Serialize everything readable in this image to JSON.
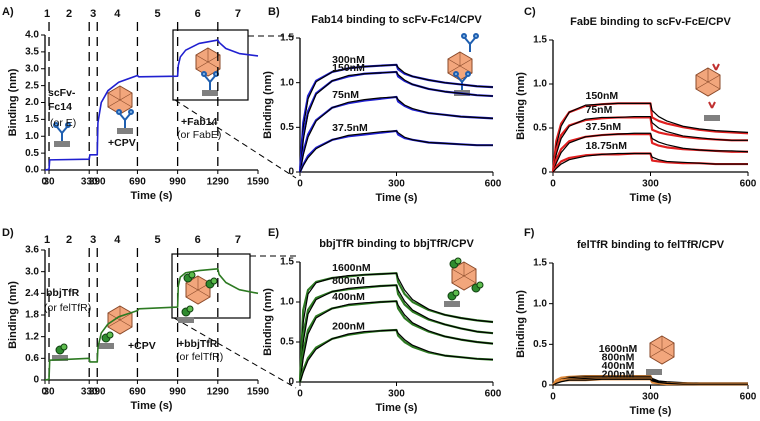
{
  "chart_data": [
    {
      "type": "line",
      "panel": "A)",
      "xlabel": "Time (s)",
      "ylabel": "Binding (nm)",
      "x": [
        0,
        30,
        35,
        330,
        335,
        390,
        395,
        420,
        470,
        550,
        690,
        700,
        990,
        995,
        1010,
        1050,
        1150,
        1290,
        1300,
        1350,
        1450,
        1590
      ],
      "xlim": [
        0,
        1590
      ],
      "xticks": [
        0,
        30,
        330,
        390,
        690,
        990,
        1290,
        1590
      ],
      "ylim": [
        0,
        4
      ],
      "yticks": [
        {
          "value": 0,
          "label": "0.0"
        },
        0.5,
        {
          "value": 1,
          "label": "1.0"
        },
        1.5,
        {
          "value": 2,
          "label": "2.0"
        },
        2.5,
        {
          "value": 3,
          "label": "3.0"
        },
        3.5,
        {
          "value": 4,
          "label": "4.0"
        }
      ],
      "series": [
        {
          "color": "#2020d0",
          "values": [
            0,
            0.02,
            0.3,
            0.32,
            0.45,
            0.45,
            1.4,
            2.0,
            2.35,
            2.6,
            2.8,
            2.76,
            2.78,
            3.1,
            3.35,
            3.55,
            3.75,
            3.85,
            3.78,
            3.6,
            3.45,
            3.38
          ]
        }
      ],
      "steps": {
        "labels": [
          "1",
          "2",
          "3",
          "4",
          "5",
          "6",
          "7"
        ],
        "boundaries": [
          30,
          330,
          390,
          690,
          990,
          1290
        ]
      },
      "annotations": [
        "scFv-",
        "Fc14",
        "(or E)",
        "+CPV",
        "+Fab14",
        "(or FabE)"
      ]
    },
    {
      "type": "line",
      "panel": "B)",
      "title": "Fab14 binding to scFv-Fc14/CPV",
      "xlabel": "Time (s)",
      "ylabel": "Binding (nm)",
      "x": [
        0,
        10,
        25,
        50,
        100,
        150,
        200,
        250,
        300,
        305,
        325,
        350,
        400,
        450,
        500,
        550,
        600
      ],
      "xlim": [
        0,
        600
      ],
      "xticks": [
        0,
        300,
        600
      ],
      "ylim": [
        0,
        1.5
      ],
      "yticks": [
        0,
        0.5,
        {
          "value": 1,
          "label": "1.0"
        },
        1.5
      ],
      "fit_color": "#000000",
      "series": [
        {
          "name": "300nM",
          "color": "#2020d0",
          "values": [
            0,
            0.55,
            0.85,
            1.02,
            1.12,
            1.16,
            1.18,
            1.19,
            1.2,
            1.15,
            1.1,
            1.07,
            1.03,
            1.0,
            0.98,
            0.96,
            0.95
          ],
          "fit": [
            0,
            0.5,
            0.82,
            1.01,
            1.12,
            1.16,
            1.18,
            1.19,
            1.2,
            1.17,
            1.11,
            1.07,
            1.03,
            1.0,
            0.98,
            0.96,
            0.95
          ]
        },
        {
          "name": "150nM",
          "color": "#2020d0",
          "values": [
            0,
            0.4,
            0.68,
            0.88,
            1.02,
            1.07,
            1.1,
            1.11,
            1.12,
            1.07,
            1.02,
            0.98,
            0.93,
            0.9,
            0.88,
            0.86,
            0.85
          ],
          "fit": [
            0,
            0.36,
            0.65,
            0.87,
            1.02,
            1.08,
            1.1,
            1.11,
            1.12,
            1.09,
            1.03,
            0.98,
            0.93,
            0.9,
            0.88,
            0.86,
            0.85
          ]
        },
        {
          "name": "75nM",
          "color": "#2020d0",
          "values": [
            0,
            0.22,
            0.42,
            0.58,
            0.72,
            0.77,
            0.8,
            0.82,
            0.84,
            0.79,
            0.74,
            0.7,
            0.66,
            0.64,
            0.62,
            0.61,
            0.6
          ],
          "fit": [
            0,
            0.19,
            0.39,
            0.57,
            0.72,
            0.78,
            0.81,
            0.83,
            0.84,
            0.81,
            0.75,
            0.71,
            0.66,
            0.64,
            0.62,
            0.61,
            0.6
          ]
        },
        {
          "name": "37.5nM",
          "color": "#2020d0",
          "values": [
            0,
            0.08,
            0.18,
            0.27,
            0.36,
            0.4,
            0.42,
            0.44,
            0.46,
            0.42,
            0.38,
            0.36,
            0.33,
            0.32,
            0.31,
            0.3,
            0.3
          ],
          "fit": [
            0,
            0.07,
            0.16,
            0.26,
            0.36,
            0.41,
            0.43,
            0.45,
            0.46,
            0.44,
            0.39,
            0.36,
            0.33,
            0.32,
            0.31,
            0.3,
            0.3
          ]
        }
      ]
    },
    {
      "type": "line",
      "panel": "C)",
      "title": "FabE binding to scFv-FcE/CPV",
      "xlabel": "Time (s)",
      "ylabel": "Binding (nm)",
      "x": [
        0,
        10,
        25,
        50,
        100,
        150,
        200,
        250,
        300,
        305,
        325,
        350,
        400,
        450,
        500,
        550,
        600
      ],
      "xlim": [
        0,
        600
      ],
      "xticks": [
        0,
        300,
        600
      ],
      "ylim": [
        0,
        1.5
      ],
      "yticks": [
        0,
        0.5,
        {
          "value": 1,
          "label": "1.0"
        },
        1.5
      ],
      "fit_color": "#000000",
      "series": [
        {
          "name": "150nM",
          "color": "#e02020",
          "values": [
            0,
            0.35,
            0.55,
            0.68,
            0.75,
            0.77,
            0.78,
            0.78,
            0.78,
            0.62,
            0.58,
            0.55,
            0.51,
            0.48,
            0.46,
            0.45,
            0.44
          ],
          "fit": [
            0,
            0.3,
            0.52,
            0.68,
            0.76,
            0.77,
            0.78,
            0.78,
            0.78,
            0.7,
            0.63,
            0.58,
            0.52,
            0.49,
            0.47,
            0.46,
            0.45
          ]
        },
        {
          "name": "75nM",
          "color": "#e02020",
          "values": [
            0,
            0.25,
            0.42,
            0.53,
            0.59,
            0.61,
            0.62,
            0.62,
            0.62,
            0.48,
            0.45,
            0.43,
            0.4,
            0.38,
            0.37,
            0.36,
            0.36
          ],
          "fit": [
            0,
            0.2,
            0.38,
            0.52,
            0.6,
            0.62,
            0.62,
            0.63,
            0.63,
            0.56,
            0.5,
            0.46,
            0.41,
            0.39,
            0.37,
            0.36,
            0.36
          ]
        },
        {
          "name": "37.5nM",
          "color": "#e02020",
          "values": [
            0,
            0.14,
            0.26,
            0.35,
            0.4,
            0.42,
            0.43,
            0.43,
            0.43,
            0.33,
            0.3,
            0.28,
            0.26,
            0.25,
            0.24,
            0.23,
            0.23
          ],
          "fit": [
            0,
            0.1,
            0.22,
            0.33,
            0.4,
            0.42,
            0.43,
            0.44,
            0.44,
            0.38,
            0.34,
            0.31,
            0.27,
            0.25,
            0.24,
            0.24,
            0.23
          ]
        },
        {
          "name": "18.75nM",
          "color": "#e02020",
          "values": [
            0,
            0.06,
            0.12,
            0.16,
            0.19,
            0.2,
            0.2,
            0.21,
            0.21,
            0.13,
            0.12,
            0.11,
            0.1,
            0.1,
            0.09,
            0.09,
            0.09
          ],
          "fit": [
            0,
            0.04,
            0.09,
            0.14,
            0.18,
            0.2,
            0.21,
            0.21,
            0.21,
            0.17,
            0.14,
            0.12,
            0.11,
            0.1,
            0.09,
            0.09,
            0.09
          ]
        }
      ]
    },
    {
      "type": "line",
      "panel": "D)",
      "xlabel": "Time (s)",
      "ylabel": "Binding (nm)",
      "x": [
        0,
        30,
        35,
        330,
        335,
        390,
        395,
        420,
        470,
        550,
        690,
        700,
        990,
        995,
        1010,
        1050,
        1150,
        1290,
        1300,
        1350,
        1450,
        1590
      ],
      "xlim": [
        0,
        1590
      ],
      "xticks": [
        0,
        30,
        330,
        390,
        690,
        990,
        1290,
        1590
      ],
      "ylim": [
        0,
        3.6
      ],
      "yticks": [
        0,
        0.6,
        1.2,
        1.8,
        2.4,
        {
          "value": 3,
          "label": "3.0"
        },
        3.6
      ],
      "series": [
        {
          "color": "#2d7a22",
          "values": [
            0,
            0.02,
            0.55,
            0.6,
            0.5,
            0.5,
            0.9,
            1.3,
            1.55,
            1.75,
            1.92,
            1.97,
            2.02,
            2.6,
            2.85,
            2.97,
            3.03,
            3.08,
            2.92,
            2.7,
            2.5,
            2.4
          ]
        }
      ],
      "steps": {
        "labels": [
          "1",
          "2",
          "3",
          "4",
          "5",
          "6",
          "7"
        ],
        "boundaries": [
          30,
          330,
          390,
          690,
          990,
          1290
        ]
      },
      "annotations": [
        "bbjTfR",
        "(or felTfR)",
        "+CPV",
        "+bbjTfR",
        "(or felTfR)"
      ]
    },
    {
      "type": "line",
      "panel": "E)",
      "title": "bbjTfR binding to bbjTfR/CPV",
      "xlabel": "Time (s)",
      "ylabel": "Binding (nm)",
      "x": [
        0,
        10,
        25,
        50,
        100,
        150,
        200,
        250,
        300,
        305,
        325,
        350,
        400,
        450,
        500,
        550,
        600
      ],
      "xlim": [
        0,
        600
      ],
      "xticks": [
        0,
        300,
        600
      ],
      "ylim": [
        0,
        1.5
      ],
      "yticks": [
        0,
        0.5,
        {
          "value": 1,
          "label": "1.0"
        },
        1.5
      ],
      "fit_color": "#000000",
      "series": [
        {
          "name": "1600nM",
          "color": "#2d7a22",
          "values": [
            0,
            0.9,
            1.15,
            1.25,
            1.3,
            1.32,
            1.34,
            1.35,
            1.36,
            1.25,
            1.1,
            1.0,
            0.9,
            0.84,
            0.8,
            0.77,
            0.75
          ],
          "fit": [
            0,
            0.75,
            1.1,
            1.24,
            1.3,
            1.33,
            1.34,
            1.35,
            1.36,
            1.3,
            1.15,
            1.03,
            0.91,
            0.84,
            0.8,
            0.77,
            0.75
          ]
        },
        {
          "name": "800nM",
          "color": "#2d7a22",
          "values": [
            0,
            0.6,
            0.9,
            1.05,
            1.13,
            1.16,
            1.18,
            1.2,
            1.21,
            1.1,
            0.97,
            0.88,
            0.78,
            0.72,
            0.67,
            0.63,
            0.61
          ],
          "fit": [
            0,
            0.5,
            0.85,
            1.03,
            1.13,
            1.17,
            1.19,
            1.2,
            1.21,
            1.15,
            1.01,
            0.9,
            0.79,
            0.72,
            0.67,
            0.63,
            0.61
          ]
        },
        {
          "name": "400nM",
          "color": "#2d7a22",
          "values": [
            0,
            0.38,
            0.65,
            0.82,
            0.92,
            0.96,
            0.98,
            1.0,
            1.01,
            0.92,
            0.8,
            0.72,
            0.63,
            0.57,
            0.53,
            0.5,
            0.48
          ],
          "fit": [
            0,
            0.3,
            0.6,
            0.8,
            0.92,
            0.97,
            0.99,
            1.0,
            1.01,
            0.96,
            0.84,
            0.74,
            0.64,
            0.57,
            0.53,
            0.5,
            0.48
          ]
        },
        {
          "name": "200nM",
          "color": "#2d7a22",
          "values": [
            0,
            0.15,
            0.3,
            0.43,
            0.54,
            0.59,
            0.62,
            0.64,
            0.65,
            0.58,
            0.5,
            0.44,
            0.37,
            0.33,
            0.31,
            0.29,
            0.28
          ],
          "fit": [
            0,
            0.12,
            0.27,
            0.41,
            0.54,
            0.6,
            0.63,
            0.64,
            0.65,
            0.61,
            0.53,
            0.46,
            0.38,
            0.33,
            0.31,
            0.29,
            0.28
          ]
        }
      ]
    },
    {
      "type": "line",
      "panel": "F)",
      "title": "felTfR binding to felTfR/CPV",
      "xlabel": "Time (s)",
      "ylabel": "Binding (nm)",
      "x": [
        0,
        10,
        25,
        50,
        100,
        150,
        200,
        250,
        300,
        305,
        325,
        350,
        400,
        450,
        500,
        550,
        600
      ],
      "xlim": [
        0,
        600
      ],
      "xticks": [
        0,
        300,
        600
      ],
      "ylim": [
        0,
        1.5
      ],
      "yticks": [
        0,
        0.5,
        {
          "value": 1,
          "label": "1.0"
        },
        1.5
      ],
      "fit_color": "#000000",
      "series": [
        {
          "name": "1600nM",
          "color": "#e08a3a",
          "values": [
            0,
            0.06,
            0.09,
            0.1,
            0.11,
            0.11,
            0.11,
            0.11,
            0.11,
            0.06,
            0.04,
            0.03,
            0.02,
            0.02,
            0.02,
            0.02,
            0.02
          ],
          "fit": [
            0,
            0.05,
            0.08,
            0.1,
            0.11,
            0.11,
            0.11,
            0.11,
            0.11,
            0.08,
            0.05,
            0.04,
            0.03,
            0.02,
            0.02,
            0.02,
            0.02
          ]
        },
        {
          "name": "800nM",
          "color": "#e08a3a",
          "values": [
            0,
            0.05,
            0.08,
            0.09,
            0.1,
            0.1,
            0.1,
            0.1,
            0.1,
            0.05,
            0.03,
            0.02,
            0.02,
            0.01,
            0.01,
            0.01,
            0.01
          ],
          "fit": [
            0,
            0.04,
            0.07,
            0.09,
            0.1,
            0.1,
            0.1,
            0.1,
            0.1,
            0.07,
            0.04,
            0.03,
            0.02,
            0.01,
            0.01,
            0.01,
            0.01
          ]
        },
        {
          "name": "400nM",
          "color": "#e08a3a",
          "values": [
            0,
            0.04,
            0.06,
            0.07,
            0.08,
            0.08,
            0.08,
            0.08,
            0.08,
            0.04,
            0.02,
            0.02,
            0.01,
            0.01,
            0.01,
            0.01,
            0.01
          ],
          "fit": [
            0,
            0.03,
            0.05,
            0.07,
            0.08,
            0.08,
            0.08,
            0.08,
            0.08,
            0.06,
            0.03,
            0.02,
            0.01,
            0.01,
            0.01,
            0.01,
            0.01
          ]
        },
        {
          "name": "200nM",
          "color": "#e08a3a",
          "values": [
            0,
            0.03,
            0.05,
            0.06,
            0.06,
            0.07,
            0.07,
            0.07,
            0.07,
            0.03,
            0.02,
            0.01,
            0.01,
            0.01,
            0.01,
            0.01,
            0.01
          ],
          "fit": [
            0,
            0.02,
            0.04,
            0.06,
            0.06,
            0.07,
            0.07,
            0.07,
            0.07,
            0.05,
            0.03,
            0.02,
            0.01,
            0.01,
            0.01,
            0.01,
            0.01
          ]
        }
      ]
    }
  ]
}
